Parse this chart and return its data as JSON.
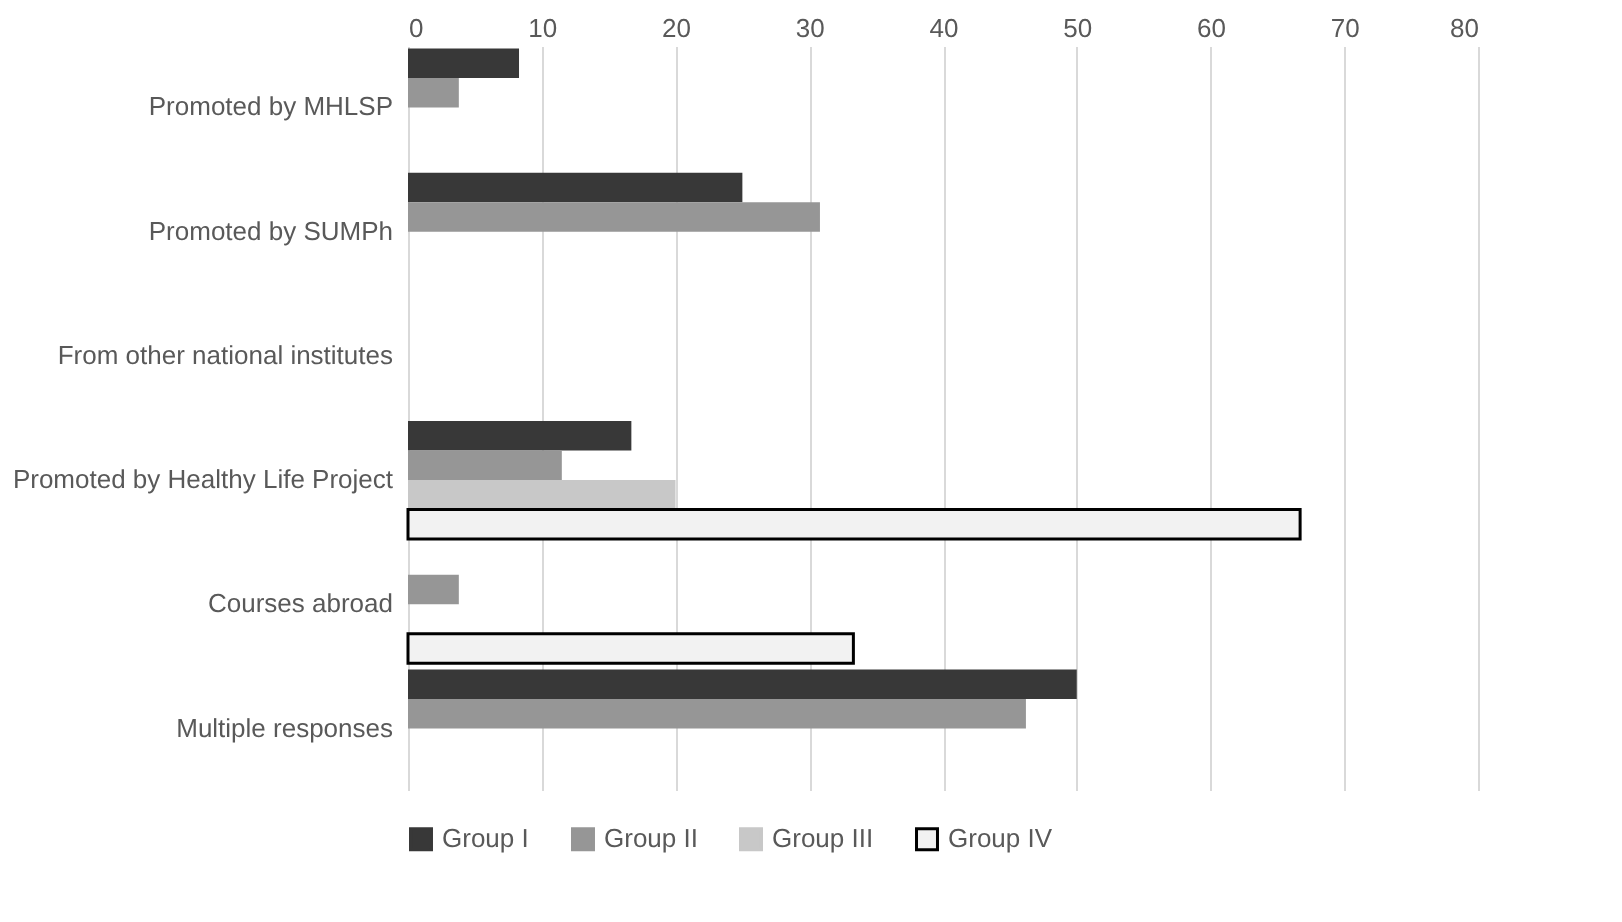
{
  "chart_data": {
    "type": "bar",
    "orientation": "horizontal",
    "categories": [
      "Promoted by MHLSP",
      "Promoted by SUMPh",
      "From other national institutes",
      "Promoted by Healthy Life Project",
      "Courses abroad",
      "Multiple responses"
    ],
    "series": [
      {
        "name": "Group I",
        "color": "#383838",
        "values": [
          8.3,
          25.0,
          null,
          16.7,
          null,
          50.0
        ]
      },
      {
        "name": "Group II",
        "color": "#969696",
        "values": [
          3.8,
          30.8,
          null,
          11.5,
          3.8,
          46.2
        ]
      },
      {
        "name": "Group III",
        "color": "#c8c8c8",
        "values": [
          null,
          null,
          null,
          20.0,
          null,
          null
        ]
      },
      {
        "name": "Group IV",
        "color": "#f2f2f2",
        "values": [
          null,
          null,
          null,
          66.7,
          33.3,
          null
        ]
      }
    ],
    "xlim": [
      0,
      80
    ],
    "xticks": [
      0,
      10,
      20,
      30,
      40,
      50,
      60,
      70,
      80
    ],
    "grid": "x",
    "legend": "bottom"
  }
}
